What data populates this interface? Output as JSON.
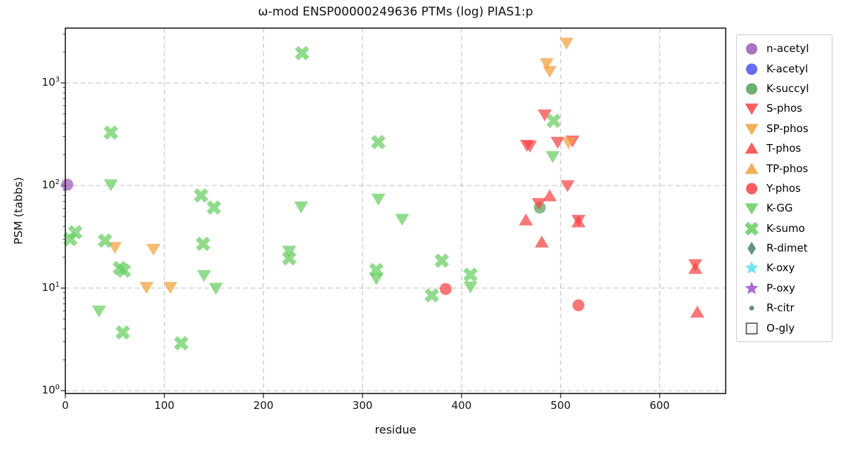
{
  "chart_data": {
    "type": "scatter",
    "title": "ω-mod ENSP00000249636 PTMs (log) PIAS1:p",
    "xlabel": "residue",
    "ylabel": "PSM (tabbs)",
    "grid": true,
    "y_scale": "log",
    "legend_position": "right",
    "axis": {
      "x_ticks": [
        0,
        100,
        200,
        300,
        400,
        500,
        600
      ],
      "y_tick_exponents": [
        0,
        1,
        2,
        3
      ],
      "xlim": [
        0,
        667
      ],
      "ylim": [
        0.94,
        3400
      ]
    },
    "series": [
      {
        "name": "n-acetyl",
        "marker": "circle",
        "color": "#9c59b5",
        "points": [
          [
            2,
            102
          ]
        ]
      },
      {
        "name": "K-acetyl",
        "marker": "circle",
        "color": "#4f52ee",
        "points": []
      },
      {
        "name": "K-succyl",
        "marker": "circle",
        "color": "#55a255",
        "points": [
          [
            479,
            61
          ]
        ]
      },
      {
        "name": "S-phos",
        "marker": "triangle-down",
        "color": "#f84343",
        "points": [
          [
            466,
            247
          ],
          [
            469,
            243
          ],
          [
            478,
            67
          ],
          [
            484,
            490
          ],
          [
            497,
            265
          ],
          [
            507,
            100
          ],
          [
            512,
            273
          ],
          [
            518,
            46
          ],
          [
            636,
            17
          ]
        ]
      },
      {
        "name": "SP-phos",
        "marker": "triangle-down",
        "color": "#f0a23c",
        "points": [
          [
            50,
            25
          ],
          [
            82,
            10.2
          ],
          [
            89,
            24
          ],
          [
            106,
            10.2
          ],
          [
            486,
            1550
          ],
          [
            489,
            1300
          ],
          [
            506,
            2450
          ],
          [
            508,
            262
          ]
        ]
      },
      {
        "name": "T-phos",
        "marker": "triangle-up",
        "color": "#f84343",
        "points": [
          [
            465,
            46
          ],
          [
            481,
            28
          ],
          [
            489,
            79
          ],
          [
            518,
            44
          ],
          [
            636,
            15.5
          ],
          [
            638,
            5.8
          ]
        ]
      },
      {
        "name": "TP-phos",
        "marker": "triangle-up",
        "color": "#f0a23c",
        "points": []
      },
      {
        "name": "Y-phos",
        "marker": "circle",
        "color": "#f84343",
        "points": [
          [
            384,
            9.8
          ],
          [
            518,
            6.8
          ]
        ]
      },
      {
        "name": "K-GG",
        "marker": "triangle-down",
        "color": "#66ce60",
        "points": [
          [
            34,
            6
          ],
          [
            46,
            102
          ],
          [
            140,
            13.3
          ],
          [
            152,
            10
          ],
          [
            226,
            23
          ],
          [
            238,
            62
          ],
          [
            314,
            12.4
          ],
          [
            316,
            74
          ],
          [
            340,
            47
          ],
          [
            409,
            10.3
          ],
          [
            492,
            192
          ]
        ]
      },
      {
        "name": "K-sumo",
        "marker": "x-thick",
        "color": "#66ce60",
        "points": [
          [
            5,
            30
          ],
          [
            10,
            35
          ],
          [
            40,
            29
          ],
          [
            46,
            328
          ],
          [
            55,
            15.7
          ],
          [
            59,
            14.8
          ],
          [
            58,
            3.7
          ],
          [
            117,
            2.9
          ],
          [
            137,
            80
          ],
          [
            139,
            27
          ],
          [
            150,
            61
          ],
          [
            226,
            19.5
          ],
          [
            239,
            1950
          ],
          [
            314,
            15
          ],
          [
            316,
            265
          ],
          [
            370,
            8.5
          ],
          [
            380,
            18.5
          ],
          [
            409,
            13.5
          ],
          [
            493,
            427
          ]
        ]
      },
      {
        "name": "R-dimet",
        "marker": "diamond",
        "color": "#4d8070",
        "points": []
      },
      {
        "name": "K-oxy",
        "marker": "star",
        "color": "#55dff0",
        "points": []
      },
      {
        "name": "P-oxy",
        "marker": "star",
        "color": "#a050cd",
        "points": []
      },
      {
        "name": "R-citr",
        "marker": "dot",
        "color": "#4d8070",
        "points": []
      },
      {
        "name": "O-gly",
        "marker": "square",
        "color": "#f2f2f2",
        "border": "#5a5a5a",
        "points": []
      }
    ]
  }
}
